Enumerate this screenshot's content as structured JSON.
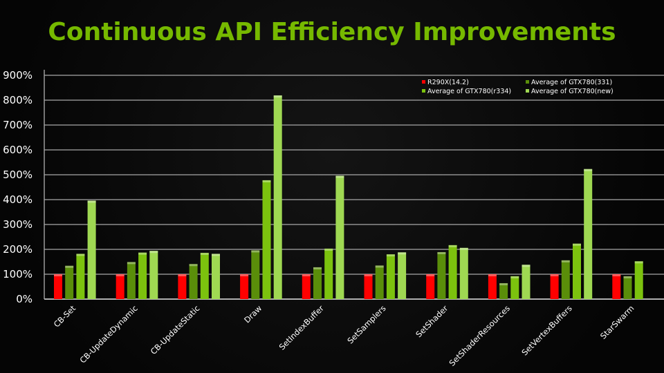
{
  "chart_data": {
    "type": "bar",
    "title": "Continuous API Efficiency Improvements",
    "xlabel": "",
    "ylabel": "",
    "ylim": [
      0,
      900
    ],
    "y_ticks": [
      "0%",
      "100%",
      "200%",
      "300%",
      "400%",
      "500%",
      "600%",
      "700%",
      "800%",
      "900%"
    ],
    "y_unit": "%",
    "grid": true,
    "legend_position": "top-right",
    "categories": [
      "CB-Set",
      "CB-UpdateDynamic",
      "CB-UpdateStatic",
      "Draw",
      "SetIndexBuffer",
      "SetSamplers",
      "SetShader",
      "SetShaderResources",
      "SetVertexBuffers",
      "StarSwarm"
    ],
    "series": [
      {
        "name": "R290X(14.2)",
        "color": "#ff0000",
        "values": [
          100,
          100,
          100,
          100,
          100,
          100,
          100,
          100,
          100,
          100
        ]
      },
      {
        "name": "Average of GTX780(331)",
        "color": "#5a8e0a",
        "values": [
          134,
          149,
          141,
          196,
          128,
          135,
          189,
          64,
          156,
          92
        ]
      },
      {
        "name": "Average of GTX780(r334)",
        "color": "#7cc20e",
        "values": [
          182,
          187,
          186,
          478,
          203,
          180,
          217,
          92,
          223,
          152
        ]
      },
      {
        "name": "Average of GTX780(new)",
        "color": "#9fd852",
        "values": [
          396,
          194,
          182,
          819,
          496,
          188,
          206,
          138,
          523,
          null
        ]
      }
    ]
  }
}
